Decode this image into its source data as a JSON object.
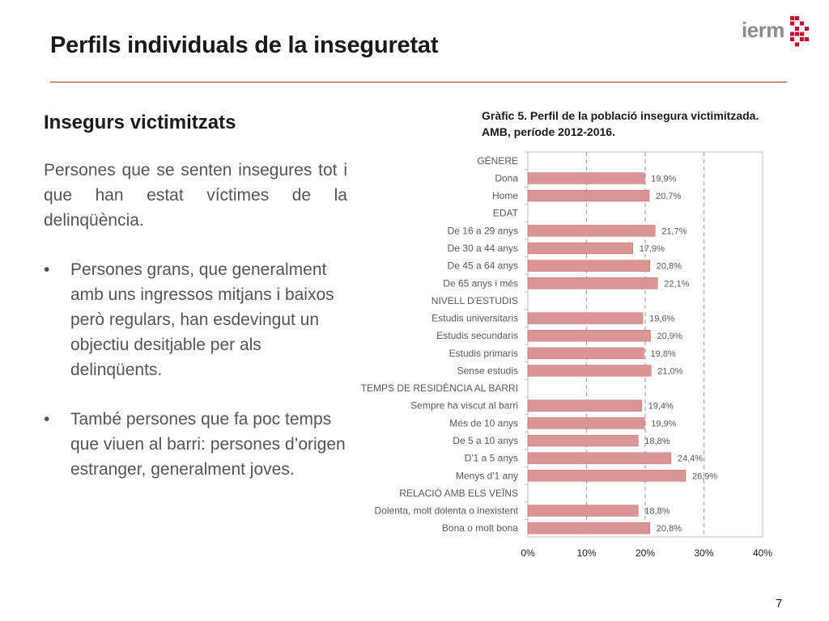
{
  "slide": {
    "title": "Perfils individuals de la inseguretat",
    "page_number": "7",
    "logo_text": "ierm",
    "section_heading": "Insegurs victimitzats",
    "intro": "Persones que se senten insegures tot i que han estat víctimes de la delinqüència.",
    "bullet_symbol": "•",
    "bullets": [
      "Persones grans, que generalment amb uns ingressos mitjans i baixos però regulars, han esdevingut un objectiu desitjable per als delinqüents.",
      "També persones que fa poc temps que viuen al barri: persones d’origen estranger, generalment joves."
    ],
    "chart_caption_line1": "Gràfic 5. Perfil de la població insegura victimitzada.",
    "chart_caption_line2": "AMB, període 2012-2016."
  },
  "colors": {
    "bar": "#d99694",
    "bar_border": "#c0504d",
    "accent_rule": "#c0392b",
    "grid": "#a6a6a6",
    "logo_mark": "#b5172b"
  },
  "chart_data": {
    "type": "bar",
    "orientation": "horizontal",
    "xlim": [
      0,
      40
    ],
    "xticks": [
      0,
      10,
      20,
      30,
      40
    ],
    "xtick_labels": [
      "0%",
      "10%",
      "20%",
      "30%",
      "40%"
    ],
    "grid": "vertical dashed",
    "legend": "none",
    "categories": [
      "GÈNERE",
      "Dona",
      "Home",
      "EDAT",
      "De 16 a 29 anys",
      "De 30 a 44 anys",
      "De 45 a 64 anys",
      "De 65 anys i més",
      "NIVELL D'ESTUDIS",
      "Estudis universitaris",
      "Estudis secundaris",
      "Estudis primaris",
      "Sense estudis",
      "TEMPS DE RESIDÈNCIA AL BARRI",
      "Sempre ha viscut al barri",
      "Més de 10 anys",
      "De 5 a 10 anys",
      "D'1 a 5 anys",
      "Menys d'1 any",
      "RELACIÓ AMB ELS VEÏNS",
      "Dolenta, molt dolenta o inexistent",
      "Bona o molt bona"
    ],
    "values": [
      null,
      19.9,
      20.7,
      null,
      21.7,
      17.9,
      20.8,
      22.1,
      null,
      19.6,
      20.9,
      19.8,
      21.0,
      null,
      19.4,
      19.9,
      18.8,
      24.4,
      26.9,
      null,
      18.8,
      20.8
    ],
    "data_labels": [
      "",
      "19,9%",
      "20,7%",
      "",
      "21,7%",
      "17,9%",
      "20,8%",
      "22,1%",
      "",
      "19,6%",
      "20,9%",
      "19,8%",
      "21,0%",
      "",
      "19,4%",
      "19,9%",
      "18,8%",
      "24,4%",
      "26,9%",
      "",
      "18,8%",
      "20,8%"
    ]
  }
}
